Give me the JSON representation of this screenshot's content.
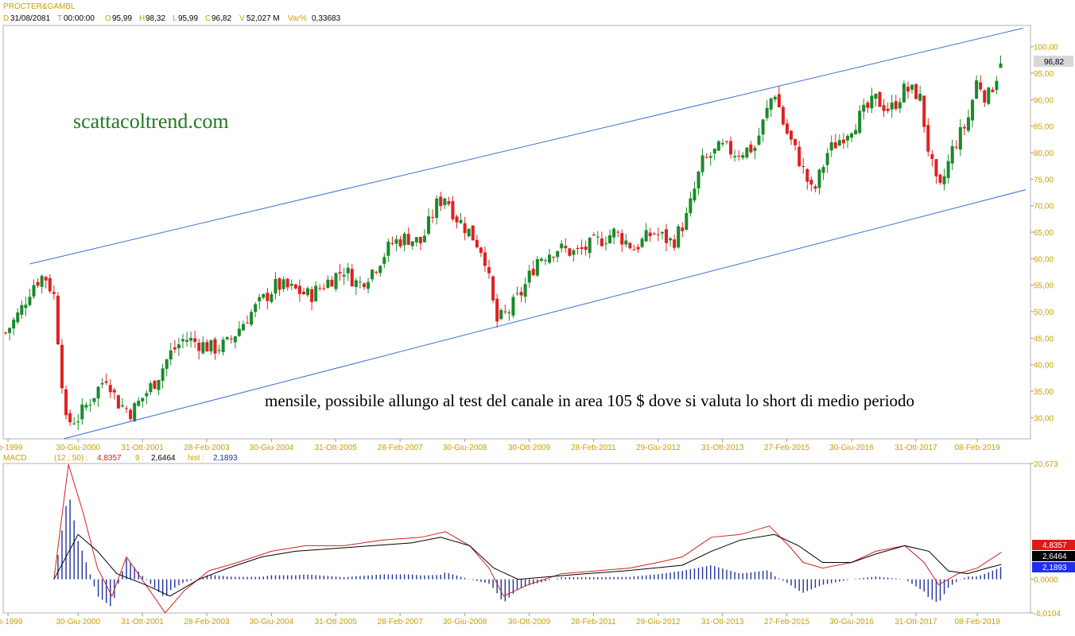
{
  "header": {
    "symbol": "PROCTER&GAMBL",
    "date_key": "D",
    "date_val": "31/08/2081",
    "time_key": "T",
    "time_val": "00:00:00",
    "open_key": "O",
    "open_val": "95,99",
    "high_key": "H",
    "high_val": "98,32",
    "low_key": "L",
    "low_val": "95,99",
    "close_key": "C",
    "close_val": "96,82",
    "vol_key": "V",
    "vol_val": "52,027 M",
    "var_key": "Var%",
    "var_val": "0,33683"
  },
  "macd_header": {
    "name": "MACD",
    "params": "(12 ; 50) :",
    "macd_val": "4,8357",
    "signal_period": "9 :",
    "signal_val": "2,6464",
    "hist_label": "hist :",
    "hist_val": "2,1893"
  },
  "annotations": {
    "brand": "scattacoltrend.com",
    "note": "mensile, possibile allungo al test del canale in area 105 $ dove si valuta lo short di medio periodo"
  },
  "price_badge": "96,82",
  "macd_badges": {
    "macd": "4,8357",
    "signal": "2,6464",
    "hist": "2,1893"
  },
  "colors": {
    "up": "#1a8a2a",
    "down": "#e02020",
    "channel": "#3a6fd0",
    "macd_line": "#d62020",
    "signal_line": "#000000",
    "hist": "#2030a0",
    "tick": "#c8a000",
    "brand": "#1f7a1f"
  },
  "chart_data": [
    {
      "type": "candlestick",
      "title": "PROCTER&GAMBL",
      "period": "monthly",
      "y_ticks": [
        "30,00",
        "35,00",
        "40,00",
        "45,00",
        "50,00",
        "55,00",
        "60,00",
        "65,00",
        "70,00",
        "75,00",
        "80,00",
        "85,00",
        "90,00",
        "95,00",
        "100,00"
      ],
      "ylim": [
        26,
        104
      ],
      "x_ticks": [
        "eb-1999",
        "30-Giu-2000",
        "31-Ott-2001",
        "28-Feb-2003",
        "30-Giu-2004",
        "31-Ott-2005",
        "28-Feb-2007",
        "30-Giu-2008",
        "30-Ott-2009",
        "28-Feb-2011",
        "29-Giu-2012",
        "31-Ott-2013",
        "27-Feb-2015",
        "30-Giu-2016",
        "31-Ott-2017",
        "08-Feb-2019"
      ],
      "xlim": [
        1998.95,
        2020.2
      ],
      "x_tick_values": [
        1999.05,
        2000.5,
        2001.83,
        2003.16,
        2004.5,
        2005.83,
        2007.16,
        2008.5,
        2009.83,
        2011.16,
        2012.5,
        2013.83,
        2015.16,
        2016.5,
        2017.83,
        2019.1
      ],
      "closes": [
        {
          "x": 1999.0,
          "y": 46
        },
        {
          "x": 1999.3,
          "y": 50
        },
        {
          "x": 1999.55,
          "y": 55
        },
        {
          "x": 1999.8,
          "y": 57
        },
        {
          "x": 2000.0,
          "y": 53
        },
        {
          "x": 2000.25,
          "y": 29
        },
        {
          "x": 2000.5,
          "y": 30
        },
        {
          "x": 2000.8,
          "y": 34
        },
        {
          "x": 2001.1,
          "y": 38
        },
        {
          "x": 2001.3,
          "y": 33
        },
        {
          "x": 2001.6,
          "y": 31
        },
        {
          "x": 2001.85,
          "y": 34
        },
        {
          "x": 2002.1,
          "y": 37
        },
        {
          "x": 2002.4,
          "y": 42
        },
        {
          "x": 2002.7,
          "y": 45
        },
        {
          "x": 2003.0,
          "y": 44
        },
        {
          "x": 2003.3,
          "y": 43
        },
        {
          "x": 2003.6,
          "y": 44
        },
        {
          "x": 2004.0,
          "y": 49
        },
        {
          "x": 2004.3,
          "y": 52
        },
        {
          "x": 2004.6,
          "y": 55
        },
        {
          "x": 2005.0,
          "y": 54
        },
        {
          "x": 2005.3,
          "y": 53
        },
        {
          "x": 2005.7,
          "y": 56
        },
        {
          "x": 2006.0,
          "y": 58
        },
        {
          "x": 2006.3,
          "y": 55
        },
        {
          "x": 2006.6,
          "y": 58
        },
        {
          "x": 2007.0,
          "y": 63
        },
        {
          "x": 2007.3,
          "y": 64
        },
        {
          "x": 2007.6,
          "y": 63
        },
        {
          "x": 2007.9,
          "y": 70
        },
        {
          "x": 2008.1,
          "y": 72
        },
        {
          "x": 2008.3,
          "y": 68
        },
        {
          "x": 2008.6,
          "y": 65
        },
        {
          "x": 2008.9,
          "y": 61
        },
        {
          "x": 2009.15,
          "y": 48
        },
        {
          "x": 2009.4,
          "y": 50
        },
        {
          "x": 2009.7,
          "y": 54
        },
        {
          "x": 2010.0,
          "y": 60
        },
        {
          "x": 2010.4,
          "y": 62
        },
        {
          "x": 2010.8,
          "y": 61
        },
        {
          "x": 2011.2,
          "y": 63
        },
        {
          "x": 2011.6,
          "y": 65
        },
        {
          "x": 2012.0,
          "y": 62
        },
        {
          "x": 2012.4,
          "y": 65
        },
        {
          "x": 2012.8,
          "y": 63
        },
        {
          "x": 2013.1,
          "y": 68
        },
        {
          "x": 2013.4,
          "y": 78
        },
        {
          "x": 2013.8,
          "y": 81
        },
        {
          "x": 2014.1,
          "y": 80
        },
        {
          "x": 2014.5,
          "y": 81
        },
        {
          "x": 2014.9,
          "y": 92
        },
        {
          "x": 2015.1,
          "y": 85
        },
        {
          "x": 2015.4,
          "y": 79
        },
        {
          "x": 2015.7,
          "y": 72
        },
        {
          "x": 2016.0,
          "y": 80
        },
        {
          "x": 2016.4,
          "y": 84
        },
        {
          "x": 2016.7,
          "y": 87
        },
        {
          "x": 2017.0,
          "y": 90
        },
        {
          "x": 2017.3,
          "y": 88
        },
        {
          "x": 2017.6,
          "y": 92
        },
        {
          "x": 2017.9,
          "y": 91
        },
        {
          "x": 2018.1,
          "y": 80
        },
        {
          "x": 2018.3,
          "y": 72
        },
        {
          "x": 2018.6,
          "y": 81
        },
        {
          "x": 2018.9,
          "y": 86
        },
        {
          "x": 2019.1,
          "y": 94
        },
        {
          "x": 2019.3,
          "y": 90
        },
        {
          "x": 2019.6,
          "y": 96.82
        }
      ],
      "last": {
        "open": 95.99,
        "high": 98.32,
        "low": 95.99,
        "close": 96.82
      },
      "channel": {
        "upper": [
          {
            "x": 1999.5,
            "y": 59
          },
          {
            "x": 2020.05,
            "y": 103.5
          }
        ],
        "lower": [
          {
            "x": 2000.2,
            "y": 26
          },
          {
            "x": 2020.1,
            "y": 73
          }
        ]
      }
    },
    {
      "type": "line",
      "title": "MACD (12 ; 50)",
      "y_ticks": [
        "20,673",
        "0,0000",
        "-6,0104"
      ],
      "ylim": [
        -6.0104,
        20.673
      ],
      "series": [
        {
          "name": "MACD",
          "values": [
            [
              2000.0,
              0
            ],
            [
              2000.3,
              20.5
            ],
            [
              2000.6,
              12
            ],
            [
              2000.9,
              2
            ],
            [
              2001.2,
              -3
            ],
            [
              2001.5,
              4
            ],
            [
              2001.9,
              -1
            ],
            [
              2002.3,
              -6
            ],
            [
              2002.7,
              -2
            ],
            [
              2003.2,
              1.5
            ],
            [
              2003.8,
              3
            ],
            [
              2004.5,
              5
            ],
            [
              2005.2,
              6
            ],
            [
              2006.0,
              6
            ],
            [
              2006.8,
              7
            ],
            [
              2007.6,
              7.5
            ],
            [
              2008.1,
              8.5
            ],
            [
              2008.6,
              6
            ],
            [
              2009.0,
              2
            ],
            [
              2009.3,
              -3
            ],
            [
              2009.8,
              -1
            ],
            [
              2010.5,
              1
            ],
            [
              2011.2,
              1.5
            ],
            [
              2011.9,
              2
            ],
            [
              2012.5,
              3
            ],
            [
              2013.0,
              4
            ],
            [
              2013.6,
              7.5
            ],
            [
              2014.2,
              8
            ],
            [
              2014.8,
              9.5
            ],
            [
              2015.2,
              6
            ],
            [
              2015.5,
              3
            ],
            [
              2015.9,
              2
            ],
            [
              2016.5,
              3
            ],
            [
              2017.0,
              5
            ],
            [
              2017.6,
              6
            ],
            [
              2018.0,
              3
            ],
            [
              2018.3,
              -1
            ],
            [
              2018.7,
              1
            ],
            [
              2019.1,
              2
            ],
            [
              2019.6,
              4.8357
            ]
          ]
        },
        {
          "name": "Signal",
          "values": [
            [
              2000.0,
              0
            ],
            [
              2000.5,
              8
            ],
            [
              2000.9,
              5
            ],
            [
              2001.3,
              1
            ],
            [
              2001.9,
              -1
            ],
            [
              2002.4,
              -3
            ],
            [
              2003.0,
              0
            ],
            [
              2003.6,
              2
            ],
            [
              2004.3,
              4
            ],
            [
              2005.0,
              5
            ],
            [
              2005.8,
              5.5
            ],
            [
              2006.6,
              6
            ],
            [
              2007.4,
              6.5
            ],
            [
              2008.0,
              7.5
            ],
            [
              2008.6,
              6
            ],
            [
              2009.1,
              2
            ],
            [
              2009.6,
              0
            ],
            [
              2010.3,
              0.5
            ],
            [
              2011.0,
              1
            ],
            [
              2011.8,
              1.5
            ],
            [
              2012.4,
              2
            ],
            [
              2013.0,
              2.5
            ],
            [
              2013.6,
              5
            ],
            [
              2014.2,
              7
            ],
            [
              2014.9,
              8
            ],
            [
              2015.4,
              6
            ],
            [
              2015.9,
              3
            ],
            [
              2016.5,
              3
            ],
            [
              2017.0,
              4.5
            ],
            [
              2017.6,
              6
            ],
            [
              2018.1,
              5
            ],
            [
              2018.5,
              1.5
            ],
            [
              2018.9,
              1
            ],
            [
              2019.3,
              2
            ],
            [
              2019.6,
              2.6464
            ]
          ]
        },
        {
          "name": "hist",
          "values": []
        }
      ]
    }
  ]
}
